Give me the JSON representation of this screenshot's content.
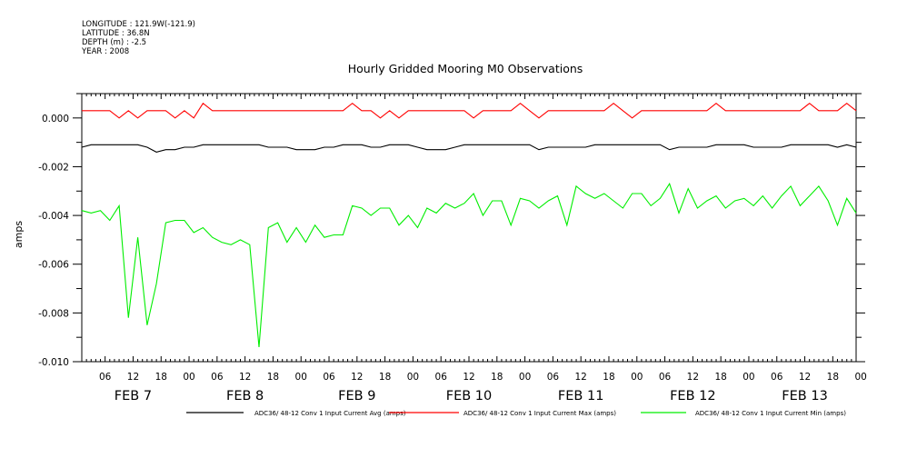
{
  "meta": {
    "longitude": "LONGITUDE : 121.9W(-121.9)",
    "latitude": "LATITUDE : 36.8N",
    "depth": "DEPTH (m) : -2.5",
    "year": "YEAR : 2008"
  },
  "chart_data": {
    "type": "line",
    "title": "Hourly Gridded Mooring M0 Observations",
    "ylabel": "amps",
    "xlabel": "",
    "ylim": [
      -0.01,
      0.001
    ],
    "yticks": [
      0.0,
      -0.002,
      -0.004,
      -0.006,
      -0.008,
      -0.01
    ],
    "ytick_labels": [
      "0.000",
      "-0.002",
      "-0.004",
      "-0.006",
      "-0.008",
      "-0.010"
    ],
    "xlim_hours": [
      1,
      167
    ],
    "x_unit": "hours since 00:00 FEB 7 2008, 6-hourly samples",
    "x": [
      1,
      3,
      5,
      7,
      9,
      11,
      13,
      15,
      17,
      19,
      21,
      23,
      25,
      27,
      29,
      31,
      33,
      35,
      37,
      39,
      41,
      43,
      45,
      47,
      49,
      51,
      53,
      55,
      57,
      59,
      61,
      63,
      65,
      67,
      69,
      71,
      73,
      75,
      77,
      79,
      81,
      83,
      85,
      87,
      89,
      91,
      93,
      95,
      97,
      99,
      101,
      103,
      105,
      107,
      109,
      111,
      113,
      115,
      117,
      119,
      121,
      123,
      125,
      127,
      129,
      131,
      133,
      135,
      137,
      139,
      141,
      143,
      145,
      147,
      149,
      151,
      153,
      155,
      157,
      159,
      161,
      163,
      165,
      167
    ],
    "xtick_hour_labels": [
      {
        "h": 6,
        "label": "06"
      },
      {
        "h": 12,
        "label": "12"
      },
      {
        "h": 18,
        "label": "18"
      },
      {
        "h": 24,
        "label": "00"
      },
      {
        "h": 30,
        "label": "06"
      },
      {
        "h": 36,
        "label": "12"
      },
      {
        "h": 42,
        "label": "18"
      },
      {
        "h": 48,
        "label": "00"
      },
      {
        "h": 54,
        "label": "06"
      },
      {
        "h": 60,
        "label": "12"
      },
      {
        "h": 66,
        "label": "18"
      },
      {
        "h": 72,
        "label": "00"
      },
      {
        "h": 78,
        "label": "06"
      },
      {
        "h": 84,
        "label": "12"
      },
      {
        "h": 90,
        "label": "18"
      },
      {
        "h": 96,
        "label": "00"
      },
      {
        "h": 102,
        "label": "06"
      },
      {
        "h": 108,
        "label": "12"
      },
      {
        "h": 114,
        "label": "18"
      },
      {
        "h": 120,
        "label": "00"
      },
      {
        "h": 126,
        "label": "06"
      },
      {
        "h": 132,
        "label": "12"
      },
      {
        "h": 138,
        "label": "18"
      },
      {
        "h": 144,
        "label": "00"
      },
      {
        "h": 150,
        "label": "06"
      },
      {
        "h": 156,
        "label": "12"
      },
      {
        "h": 162,
        "label": "18"
      },
      {
        "h": 168,
        "label": "00"
      }
    ],
    "day_labels": [
      {
        "h": 12,
        "label": "FEB  7"
      },
      {
        "h": 36,
        "label": "FEB  8"
      },
      {
        "h": 60,
        "label": "FEB  9"
      },
      {
        "h": 84,
        "label": "FEB 10"
      },
      {
        "h": 108,
        "label": "FEB 11"
      },
      {
        "h": 132,
        "label": "FEB 12"
      },
      {
        "h": 156,
        "label": "FEB 13"
      }
    ],
    "grid": false,
    "legend_position": "bottom",
    "series": [
      {
        "name": "ADC36/ 48-12 Conv 1 Input Current Avg (amps)",
        "color": "#000000",
        "values": [
          -0.0012,
          -0.0011,
          -0.0011,
          -0.0011,
          -0.0011,
          -0.0011,
          -0.0011,
          -0.0012,
          -0.0014,
          -0.0013,
          -0.0013,
          -0.0012,
          -0.0012,
          -0.0011,
          -0.0011,
          -0.0011,
          -0.0011,
          -0.0011,
          -0.0011,
          -0.0011,
          -0.0012,
          -0.0012,
          -0.0012,
          -0.0013,
          -0.0013,
          -0.0013,
          -0.0012,
          -0.0012,
          -0.0011,
          -0.0011,
          -0.0011,
          -0.0012,
          -0.0012,
          -0.0011,
          -0.0011,
          -0.0011,
          -0.0012,
          -0.0013,
          -0.0013,
          -0.0013,
          -0.0012,
          -0.0011,
          -0.0011,
          -0.0011,
          -0.0011,
          -0.0011,
          -0.0011,
          -0.0011,
          -0.0011,
          -0.0013,
          -0.0012,
          -0.0012,
          -0.0012,
          -0.0012,
          -0.0012,
          -0.0011,
          -0.0011,
          -0.0011,
          -0.0011,
          -0.0011,
          -0.0011,
          -0.0011,
          -0.0011,
          -0.0013,
          -0.0012,
          -0.0012,
          -0.0012,
          -0.0012,
          -0.0011,
          -0.0011,
          -0.0011,
          -0.0011,
          -0.0012,
          -0.0012,
          -0.0012,
          -0.0012,
          -0.0011,
          -0.0011,
          -0.0011,
          -0.0011,
          -0.0011,
          -0.0012,
          -0.0011,
          -0.0012
        ]
      },
      {
        "name": "ADC36/ 48-12 Conv 1 Input Current Max (amps)",
        "color": "#ff0000",
        "values": [
          0.0003,
          0.0003,
          0.0003,
          0.0003,
          0.0,
          0.0003,
          0.0,
          0.0003,
          0.0003,
          0.0003,
          0.0,
          0.0003,
          0.0,
          0.0006,
          0.0003,
          0.0003,
          0.0003,
          0.0003,
          0.0003,
          0.0003,
          0.0003,
          0.0003,
          0.0003,
          0.0003,
          0.0003,
          0.0003,
          0.0003,
          0.0003,
          0.0003,
          0.0006,
          0.0003,
          0.0003,
          0.0,
          0.0003,
          0.0,
          0.0003,
          0.0003,
          0.0003,
          0.0003,
          0.0003,
          0.0003,
          0.0003,
          0.0,
          0.0003,
          0.0003,
          0.0003,
          0.0003,
          0.0006,
          0.0003,
          0.0,
          0.0003,
          0.0003,
          0.0003,
          0.0003,
          0.0003,
          0.0003,
          0.0003,
          0.0006,
          0.0003,
          0.0,
          0.0003,
          0.0003,
          0.0003,
          0.0003,
          0.0003,
          0.0003,
          0.0003,
          0.0003,
          0.0006,
          0.0003,
          0.0003,
          0.0003,
          0.0003,
          0.0003,
          0.0003,
          0.0003,
          0.0003,
          0.0003,
          0.0006,
          0.0003,
          0.0003,
          0.0003,
          0.0006,
          0.0003
        ]
      },
      {
        "name": "ADC36/ 48-12 Conv 1 Input Current Min (amps)",
        "color": "#00ee00",
        "values": [
          -0.0038,
          -0.0039,
          -0.0038,
          -0.0042,
          -0.0036,
          -0.0082,
          -0.0049,
          -0.0085,
          -0.0068,
          -0.0043,
          -0.0042,
          -0.0042,
          -0.0047,
          -0.0045,
          -0.0049,
          -0.0051,
          -0.0052,
          -0.005,
          -0.0052,
          -0.0094,
          -0.0045,
          -0.0043,
          -0.0051,
          -0.0045,
          -0.0051,
          -0.0044,
          -0.0049,
          -0.0048,
          -0.0048,
          -0.0036,
          -0.0037,
          -0.004,
          -0.0037,
          -0.0037,
          -0.0044,
          -0.004,
          -0.0045,
          -0.0037,
          -0.0039,
          -0.0035,
          -0.0037,
          -0.0035,
          -0.0031,
          -0.004,
          -0.0034,
          -0.0034,
          -0.0044,
          -0.0033,
          -0.0034,
          -0.0037,
          -0.0034,
          -0.0032,
          -0.0044,
          -0.0028,
          -0.0031,
          -0.0033,
          -0.0031,
          -0.0034,
          -0.0037,
          -0.0031,
          -0.0031,
          -0.0036,
          -0.0033,
          -0.0027,
          -0.0039,
          -0.0029,
          -0.0037,
          -0.0034,
          -0.0032,
          -0.0037,
          -0.0034,
          -0.0033,
          -0.0036,
          -0.0032,
          -0.0037,
          -0.0032,
          -0.0028,
          -0.0036,
          -0.0032,
          -0.0028,
          -0.0034,
          -0.0044,
          -0.0033,
          -0.0039
        ]
      }
    ]
  }
}
